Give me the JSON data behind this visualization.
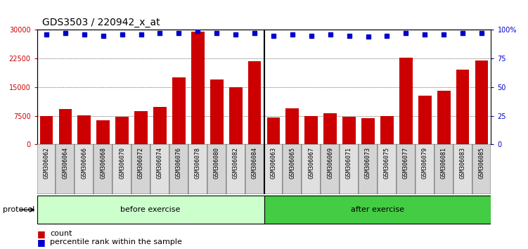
{
  "title": "GDS3503 / 220942_x_at",
  "samples": [
    "GSM306062",
    "GSM306064",
    "GSM306066",
    "GSM306068",
    "GSM306070",
    "GSM306072",
    "GSM306074",
    "GSM306076",
    "GSM306078",
    "GSM306080",
    "GSM306082",
    "GSM306084",
    "GSM306063",
    "GSM306065",
    "GSM306067",
    "GSM306069",
    "GSM306071",
    "GSM306073",
    "GSM306075",
    "GSM306077",
    "GSM306079",
    "GSM306081",
    "GSM306083",
    "GSM306085"
  ],
  "counts": [
    7400,
    9200,
    7600,
    6400,
    7200,
    8700,
    9800,
    17500,
    29500,
    17000,
    15000,
    21800,
    7000,
    9500,
    7500,
    8200,
    7300,
    6800,
    7500,
    22800,
    12800,
    14000,
    19500,
    22000
  ],
  "percentile_ranks": [
    96,
    97,
    96,
    95,
    96,
    96,
    97,
    97,
    99,
    97,
    96,
    97,
    95,
    96,
    95,
    96,
    95,
    94,
    95,
    97,
    96,
    96,
    97,
    97
  ],
  "n_before": 12,
  "n_after": 12,
  "before_label": "before exercise",
  "after_label": "after exercise",
  "protocol_label": "protocol",
  "legend_count": "count",
  "legend_percentile": "percentile rank within the sample",
  "ylim_left": [
    0,
    30000
  ],
  "yticks_left": [
    0,
    7500,
    15000,
    22500,
    30000
  ],
  "ylim_right": [
    0,
    100
  ],
  "yticks_right": [
    0,
    25,
    50,
    75,
    100
  ],
  "bar_color": "#cc0000",
  "dot_color": "#0000cc",
  "before_color_light": "#ccffcc",
  "after_color_light": "#44cc44",
  "title_fontsize": 10,
  "tick_fontsize": 7,
  "label_fontsize": 8
}
